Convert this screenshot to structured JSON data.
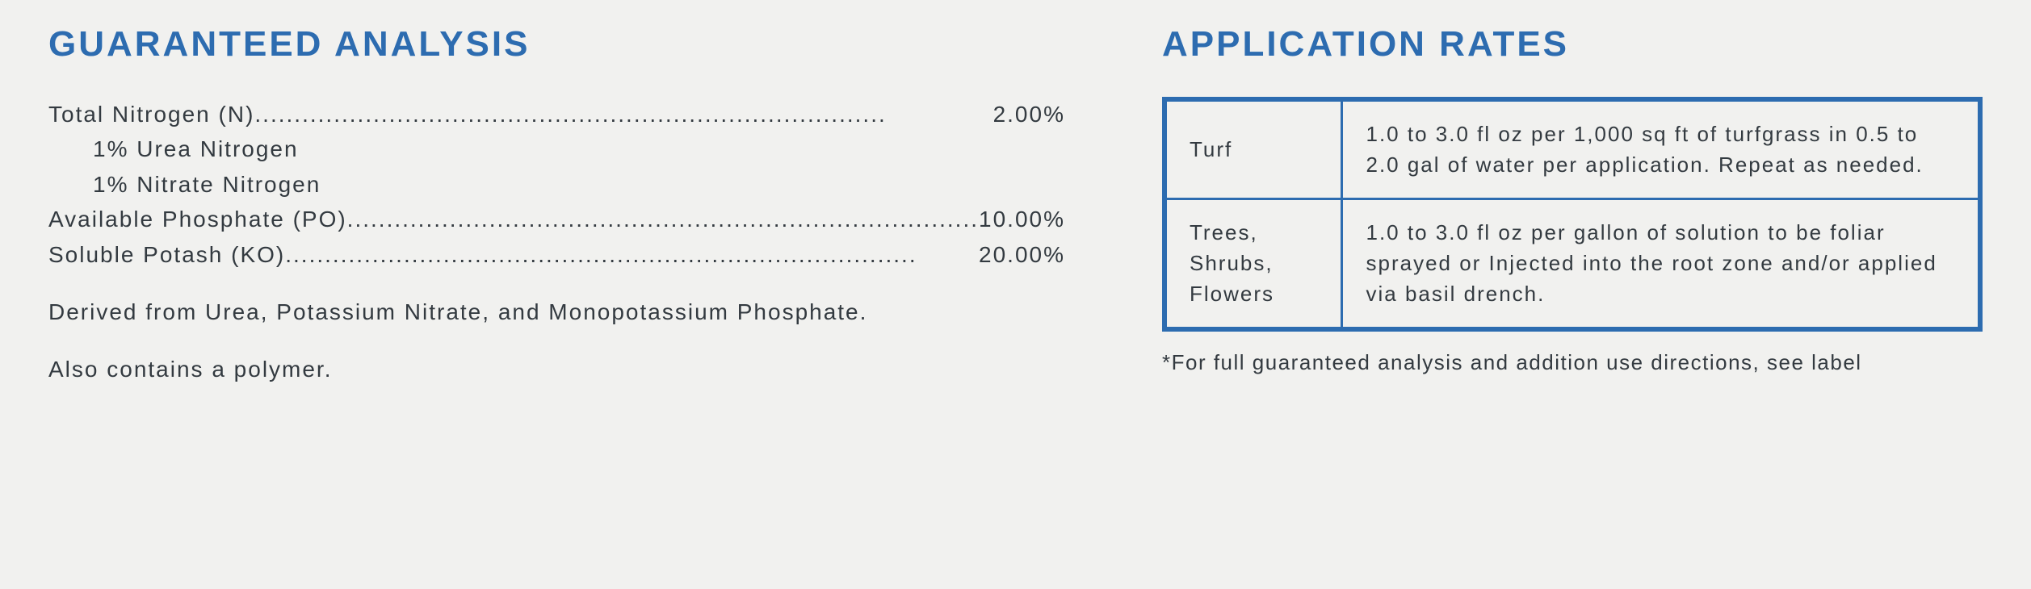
{
  "layout": {
    "background_color": "#f1f1ef",
    "heading_color": "#2d6cb0",
    "text_color": "#333a40",
    "table_border_color": "#2d6cb0",
    "heading_fontsize": 44,
    "body_fontsize": 28,
    "table_fontsize": 26,
    "footnote_fontsize": 26
  },
  "guaranteed_analysis": {
    "title": "GUARANTEED ANALYSIS",
    "items": [
      {
        "label": "Total Nitrogen (N) ",
        "value": "2.00%"
      }
    ],
    "sub_items": [
      "1% Urea Nitrogen",
      "1% Nitrate Nitrogen"
    ],
    "items2": [
      {
        "label": "Available Phosphate (PO)",
        "value": "10.00%"
      },
      {
        "label": "Soluble Potash (KO)",
        "value": "20.00%"
      }
    ],
    "derived": "Derived from Urea, Potassium Nitrate, and Monopotassium Phosphate.",
    "also": "Also contains a polymer."
  },
  "application_rates": {
    "title": "APPLICATION RATES",
    "rows": [
      {
        "label": "Turf",
        "text": "1.0 to 3.0 fl oz per 1,000 sq ft of turfgrass in 0.5 to 2.0 gal of water per application. Repeat as needed."
      },
      {
        "label": "Trees, Shrubs, Flowers",
        "text": "1.0 to 3.0 fl oz per gallon of solution to be foliar sprayed or Injected into the root zone and/or applied via basil drench."
      }
    ],
    "footnote": "*For full guaranteed analysis and addition use directions, see label"
  }
}
